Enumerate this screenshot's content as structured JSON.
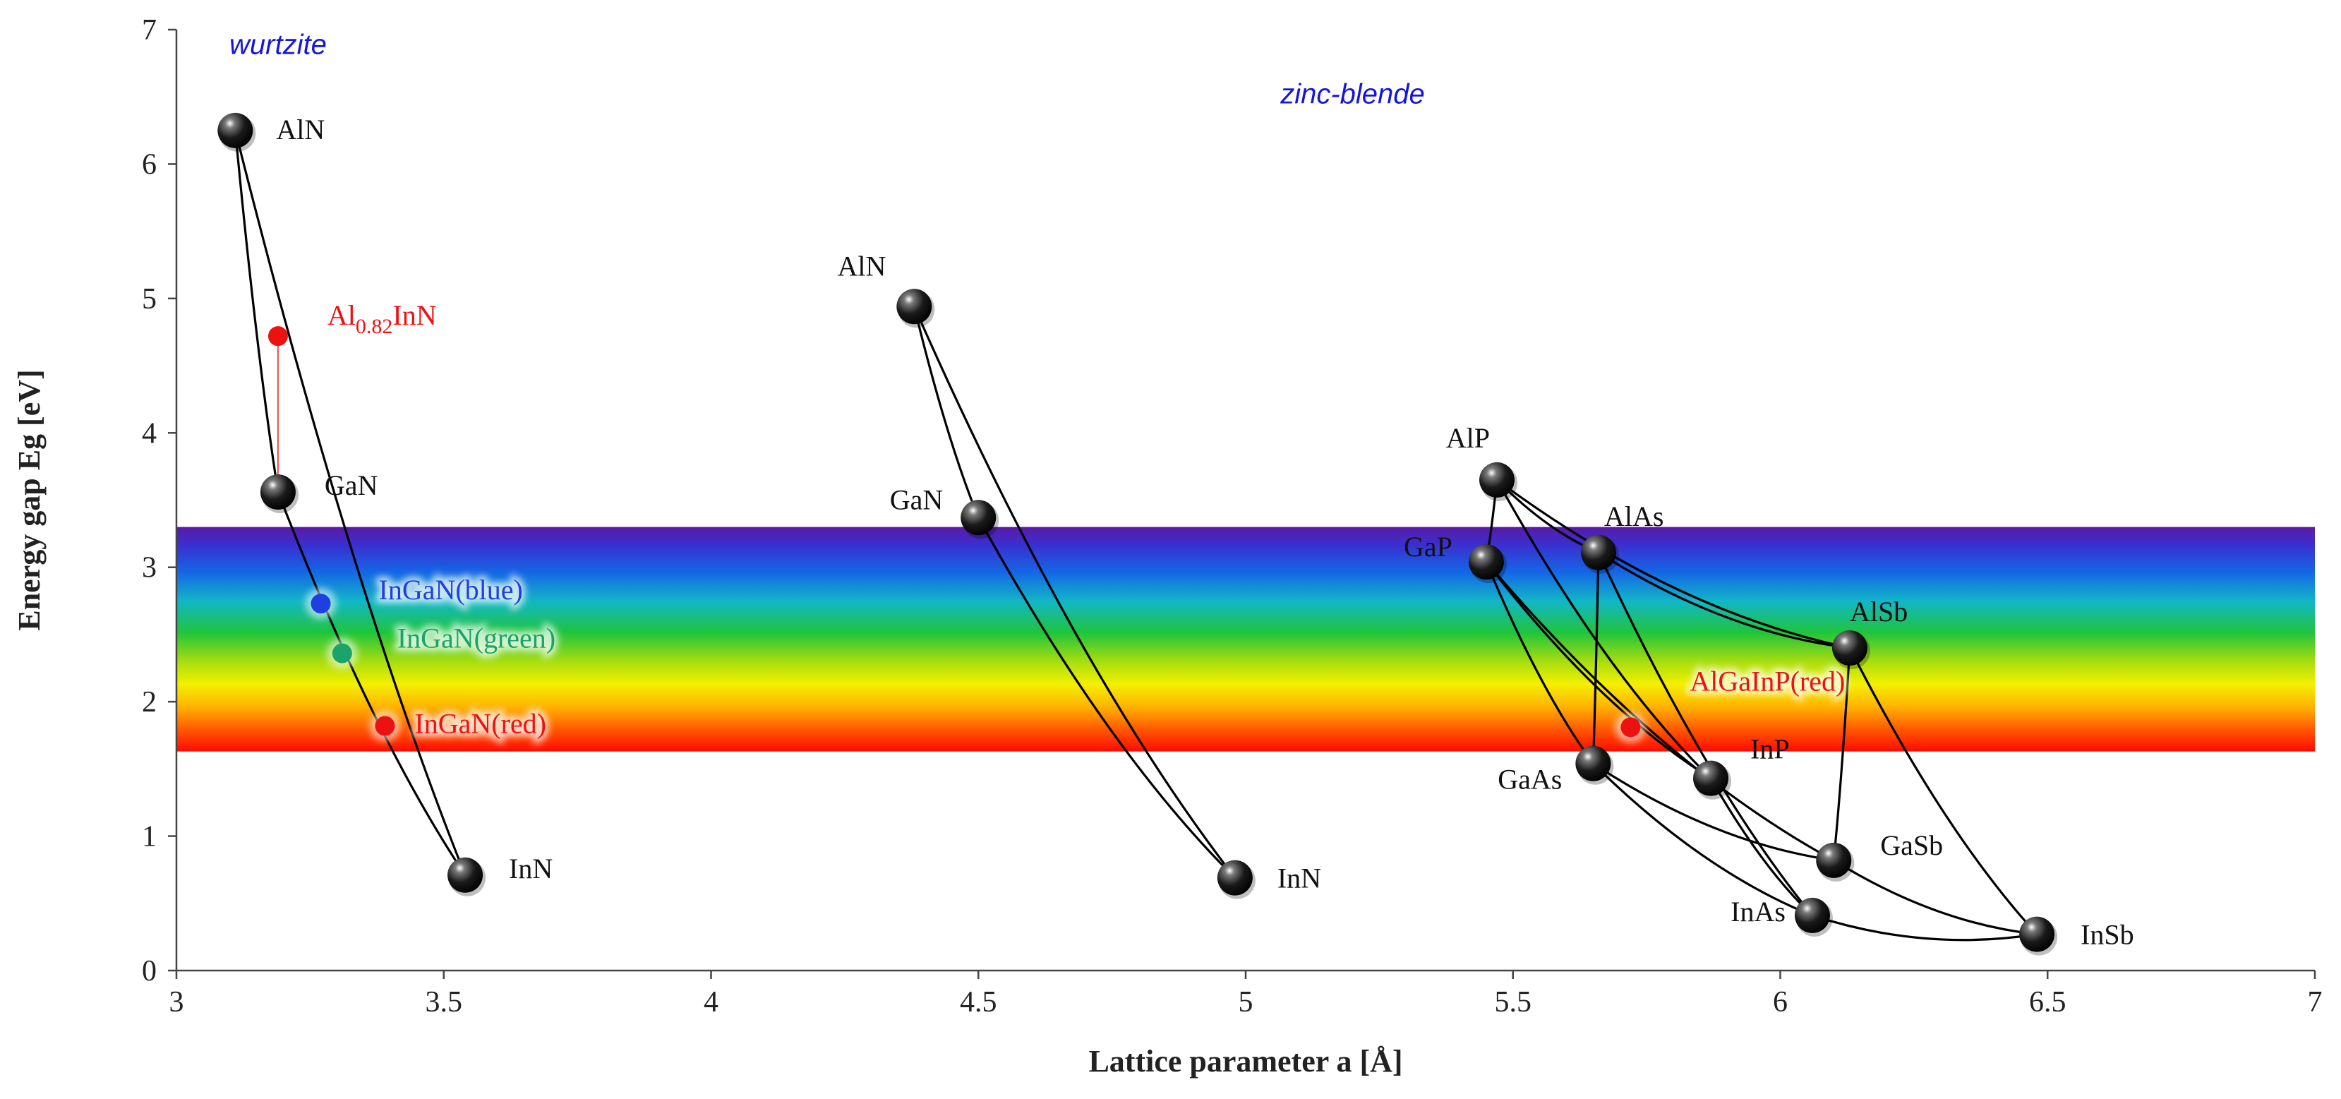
{
  "chart_data": {
    "type": "scatter",
    "xlabel": "Lattice parameter a [Å]",
    "ylabel": "Energy gap Eg [eV]",
    "xlim": [
      3,
      7
    ],
    "ylim": [
      0,
      7
    ],
    "x_ticks": [
      "3",
      "3.5",
      "4",
      "4.5",
      "5",
      "5.5",
      "6",
      "6.5",
      "7"
    ],
    "y_ticks": [
      "0",
      "1",
      "2",
      "3",
      "4",
      "5",
      "6",
      "7"
    ],
    "visible_band": {
      "ymin": 1.63,
      "ymax": 3.3
    },
    "structure_labels": [
      {
        "text": "wurtzite",
        "x": 3.19,
        "y": 6.82,
        "color": "#1515dd"
      },
      {
        "text": "zinc-blende",
        "x": 5.2,
        "y": 6.45,
        "color": "#1515dd"
      }
    ],
    "compounds": [
      {
        "id": "w_AlN",
        "name": "AlN",
        "x": 3.11,
        "y": 6.25
      },
      {
        "id": "w_GaN",
        "name": "GaN",
        "x": 3.19,
        "y": 3.56
      },
      {
        "id": "w_InN",
        "name": "InN",
        "x": 3.54,
        "y": 0.71
      },
      {
        "id": "z_AlN",
        "name": "AlN",
        "x": 4.38,
        "y": 4.94
      },
      {
        "id": "z_GaN",
        "name": "GaN",
        "x": 4.5,
        "y": 3.37
      },
      {
        "id": "z_InN",
        "name": "InN",
        "x": 4.98,
        "y": 0.69
      },
      {
        "id": "AlP",
        "name": "AlP",
        "x": 5.47,
        "y": 3.65
      },
      {
        "id": "GaP",
        "name": "GaP",
        "x": 5.45,
        "y": 3.04
      },
      {
        "id": "AlAs",
        "name": "AlAs",
        "x": 5.66,
        "y": 3.11
      },
      {
        "id": "AlSb",
        "name": "AlSb",
        "x": 6.13,
        "y": 2.4
      },
      {
        "id": "GaAs",
        "name": "GaAs",
        "x": 5.65,
        "y": 1.54
      },
      {
        "id": "InP",
        "name": "InP",
        "x": 5.87,
        "y": 1.43
      },
      {
        "id": "GaSb",
        "name": "GaSb",
        "x": 6.1,
        "y": 0.82
      },
      {
        "id": "InAs",
        "name": "InAs",
        "x": 6.06,
        "y": 0.41
      },
      {
        "id": "InSb",
        "name": "InSb",
        "x": 6.48,
        "y": 0.27
      }
    ],
    "alloy_points": [
      {
        "id": "AlInN",
        "name": "Al",
        "subscript": "0.82",
        "suffix": "InN",
        "x": 3.19,
        "y": 4.72,
        "color": "#ee1111"
      },
      {
        "id": "InGaN_blue",
        "name": "InGaN(blue)",
        "x": 3.27,
        "y": 2.73,
        "color": "#1f3fe0"
      },
      {
        "id": "InGaN_green",
        "name": "InGaN(green)",
        "x": 3.31,
        "y": 2.36,
        "color": "#1aa36a"
      },
      {
        "id": "InGaN_red",
        "name": "InGaN(red)",
        "x": 3.39,
        "y": 1.82,
        "color": "#ee1111"
      },
      {
        "id": "AlGaInP_red",
        "name": "AlGaInP(red)",
        "x": 5.72,
        "y": 1.81,
        "color": "#ee1111"
      }
    ],
    "bowing_curves": [
      [
        "w_AlN",
        "w_GaN"
      ],
      [
        "w_GaN",
        "w_InN"
      ],
      [
        "w_AlN",
        "w_InN"
      ],
      [
        "z_AlN",
        "z_GaN"
      ],
      [
        "z_GaN",
        "z_InN"
      ],
      [
        "z_AlN",
        "z_InN"
      ],
      [
        "AlP",
        "GaP"
      ],
      [
        "AlP",
        "AlAs"
      ],
      [
        "AlP",
        "InP"
      ],
      [
        "AlP",
        "AlSb"
      ],
      [
        "GaP",
        "GaAs"
      ],
      [
        "GaP",
        "InP"
      ],
      [
        "GaP",
        "GaSb"
      ],
      [
        "AlAs",
        "GaAs"
      ],
      [
        "AlAs",
        "InAs"
      ],
      [
        "AlAs",
        "AlSb"
      ],
      [
        "AlSb",
        "GaSb"
      ],
      [
        "AlSb",
        "InSb"
      ],
      [
        "GaAs",
        "GaSb"
      ],
      [
        "GaAs",
        "InAs"
      ],
      [
        "InP",
        "InAs"
      ],
      [
        "InAs",
        "InSb"
      ],
      [
        "GaSb",
        "InSb"
      ]
    ]
  }
}
